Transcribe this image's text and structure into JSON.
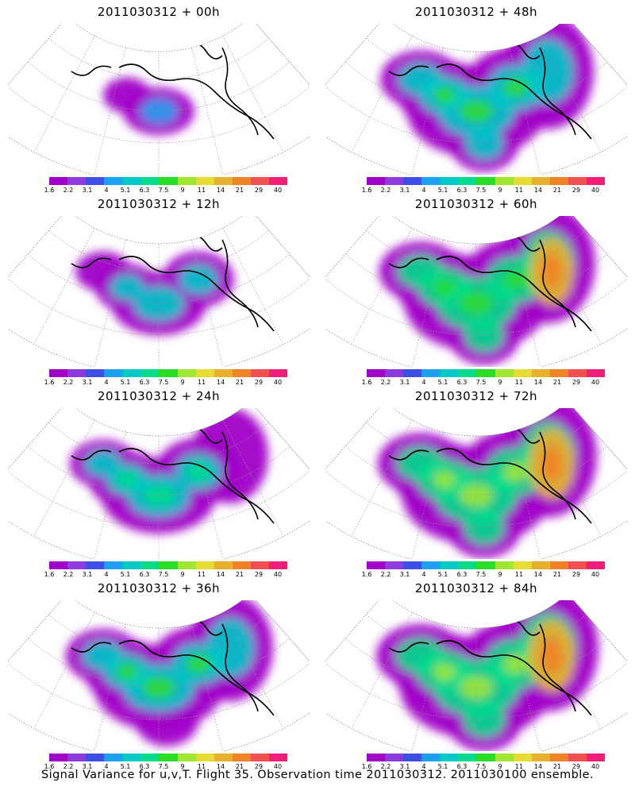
{
  "panels": [
    {
      "title": "2011030312 + 00h",
      "spread": 0.15,
      "intensity": 0.2,
      "hotspot": false
    },
    {
      "title": "2011030312 + 48h",
      "spread": 0.85,
      "intensity": 0.45,
      "hotspot": false
    },
    {
      "title": "2011030312 + 12h",
      "spread": 0.4,
      "intensity": 0.3,
      "hotspot": false
    },
    {
      "title": "2011030312 + 60h",
      "spread": 0.9,
      "intensity": 0.6,
      "hotspot": true
    },
    {
      "title": "2011030312 + 24h",
      "spread": 0.6,
      "intensity": 0.35,
      "hotspot": false
    },
    {
      "title": "2011030312 + 72h",
      "spread": 0.95,
      "intensity": 0.7,
      "hotspot": true
    },
    {
      "title": "2011030312 + 36h",
      "spread": 0.75,
      "intensity": 0.4,
      "hotspot": false
    },
    {
      "title": "2011030312 + 84h",
      "spread": 1.0,
      "intensity": 0.75,
      "hotspot": true
    }
  ],
  "colorbar": {
    "colors": [
      "#a000c8",
      "#8c3cdc",
      "#3c50e6",
      "#1ea0f0",
      "#00c8c8",
      "#00dc8c",
      "#28dc28",
      "#a0e632",
      "#e6dc32",
      "#e6af2d",
      "#f08228",
      "#f05050",
      "#f01e78"
    ],
    "labels": [
      "1.6",
      "2.2",
      "3.1",
      "4",
      "5.1",
      "6.3",
      "7.5",
      "9",
      "11",
      "14",
      "21",
      "29",
      "40"
    ]
  },
  "footer": "Signal Variance for u,v,T. Flight 35. Observation time 2011030312. 2011030100 ensemble."
}
